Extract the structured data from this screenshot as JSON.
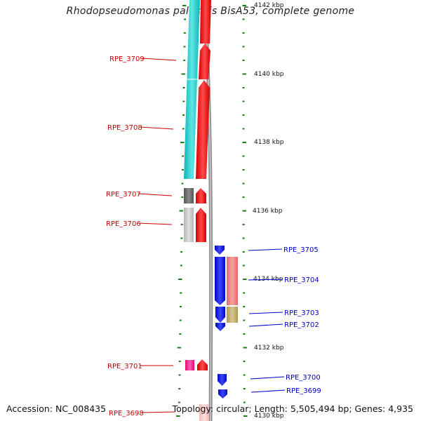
{
  "title": "Rhodopseudomonas palustris BisA53, complete genome",
  "footer": {
    "accession": "Accession: NC_008435",
    "summary": "Topology: circular; Length: 5,505,494 bp; Genes: 4,935"
  },
  "colors": {
    "backbone": "#8c8c8c",
    "tick": "#1a7f1a",
    "left_label": "#cc0000",
    "right_label": "#0000cc",
    "cyan": "#19c8c8",
    "red": "#ff0000",
    "blue": "#0a14ff",
    "dark_gray": "#6e6e6e",
    "light_gray": "#c8c8c8",
    "salmon": "#f08080",
    "khaki": "#c2b06c",
    "magenta": "#ff1493"
  },
  "kbp_labels": [
    "4142 kbp",
    "4140 kbp",
    "4138 kbp",
    "4136 kbp",
    "4134 kbp",
    "4132 kbp",
    "4130 kbp"
  ],
  "left_genes": [
    {
      "label": "RPE_3709"
    },
    {
      "label": "RPE_3708"
    },
    {
      "label": "RPE_3707"
    },
    {
      "label": "RPE_3706"
    },
    {
      "label": "RPE_3701"
    },
    {
      "label": "RPE_3698"
    }
  ],
  "right_genes": [
    {
      "label": "RPE_3705"
    },
    {
      "label": "RPE_3704"
    },
    {
      "label": "RPE_3703"
    },
    {
      "label": "RPE_3702"
    },
    {
      "label": "RPE_3700"
    },
    {
      "label": "RPE_3699"
    }
  ]
}
